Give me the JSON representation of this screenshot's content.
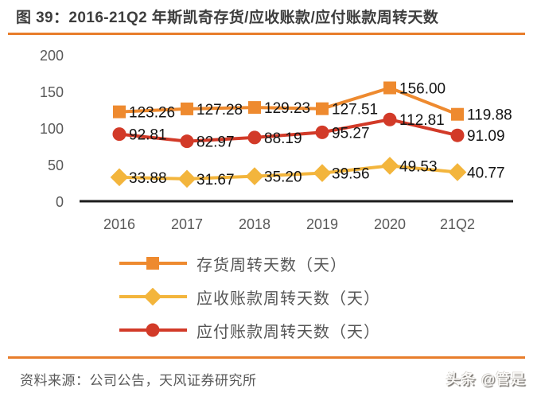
{
  "title": "图 39：2016-21Q2 年斯凯奇存货/应收账款/应付账款周转天数",
  "colors": {
    "accent_orange": "#E87D2B",
    "series_inventory": "#EE8A2F",
    "series_receivable": "#F3B53C",
    "series_payable": "#D23A28",
    "axis_line": "#1c1c1c",
    "tick_text": "#595959",
    "data_label_text": "#141414"
  },
  "chart_data": {
    "type": "line",
    "categories": [
      "2016",
      "2017",
      "2018",
      "2019",
      "2020",
      "21Q2"
    ],
    "series": [
      {
        "name": "存货周转天数（天）",
        "marker": "square",
        "color_key": "series_inventory",
        "values": [
          123.26,
          127.28,
          129.23,
          127.51,
          156.0,
          119.88
        ]
      },
      {
        "name": "应收账款周转天数（天）",
        "marker": "diamond",
        "color_key": "series_receivable",
        "values": [
          33.88,
          31.67,
          35.2,
          39.56,
          49.53,
          40.77
        ]
      },
      {
        "name": "应付账款周转天数（天）",
        "marker": "circle",
        "color_key": "series_payable",
        "values": [
          92.81,
          82.97,
          88.19,
          95.27,
          112.81,
          91.09
        ]
      }
    ],
    "ylim": [
      0,
      200
    ],
    "yticks": [
      0,
      50,
      100,
      150,
      200
    ],
    "grid": false,
    "data_labels": true,
    "legend_position": "bottom"
  },
  "footer": {
    "source_text": "资料来源：公司公告，天风证券研究所",
    "watermark": "头条 @管是"
  }
}
